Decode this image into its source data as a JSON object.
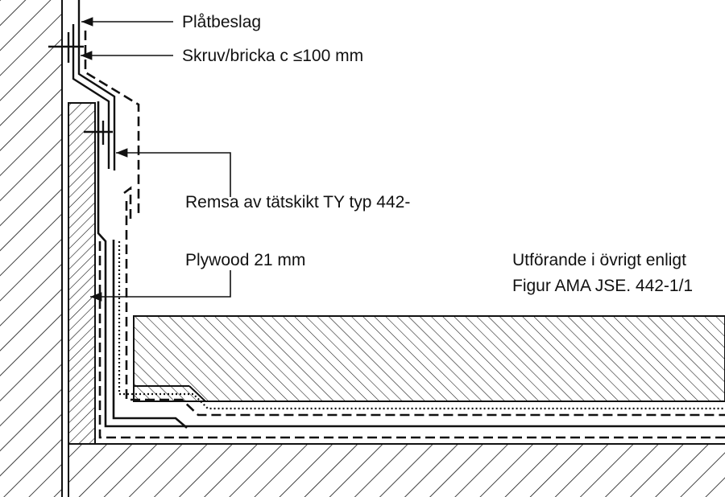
{
  "labels": {
    "platbeslag": "Plåtbeslag",
    "skruv": "Skruv/bricka c ≤100 mm",
    "remsa": "Remsa av tätskikt TY typ 442-",
    "plywood": "Plywood 21 mm",
    "note_line1": "Utförande i övrigt enligt",
    "note_line2": "Figur AMA JSE. 442-1/1"
  },
  "colors": {
    "ink": "#111111",
    "background": "#ffffff"
  }
}
